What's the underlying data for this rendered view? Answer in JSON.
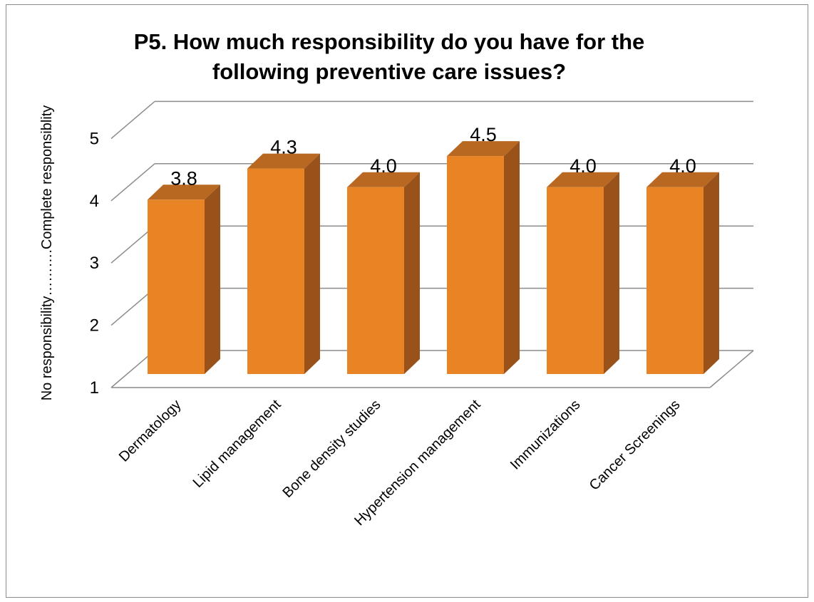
{
  "chart_data": {
    "type": "bar",
    "title_lines": [
      "P5.  How much responsibility do you have for the",
      "following preventive care issues?"
    ],
    "ylabel": "No responsibility……….Complete  responsiblity",
    "xlabel": "",
    "ylim": [
      1,
      5
    ],
    "yticks": [
      "1",
      "2",
      "3",
      "4",
      "5"
    ],
    "categories": [
      "Dermatology",
      "Lipid management",
      "Bone density studies",
      "Hypertension management",
      "Immunizations",
      "Cancer Screenings"
    ],
    "values": [
      3.8,
      4.3,
      4.0,
      4.5,
      4.0,
      4.0
    ],
    "value_labels": [
      "3.8",
      "4.3",
      "4.0",
      "4.5",
      "4.0",
      "4.0"
    ],
    "grid": true,
    "style": "3d-column",
    "colors": {
      "bar_front": "#E88424",
      "bar_side": "#98521A",
      "bar_top": "#B96822",
      "grid": "#8c8c8c"
    }
  }
}
